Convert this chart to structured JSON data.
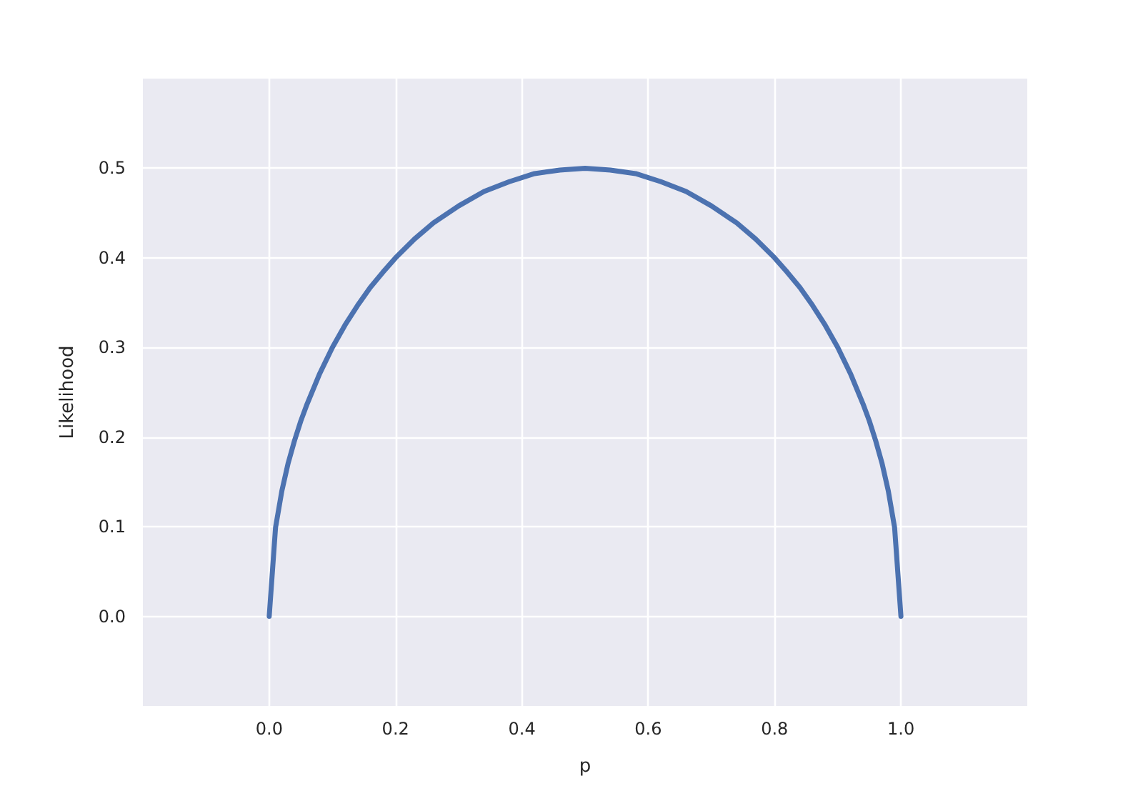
{
  "chart_data": {
    "type": "line",
    "xlabel": "p",
    "ylabel": "Likelihood",
    "x": [
      0,
      0.01,
      0.02,
      0.03,
      0.04,
      0.05,
      0.06,
      0.08,
      0.1,
      0.12,
      0.14,
      0.16,
      0.18,
      0.2,
      0.23,
      0.26,
      0.3,
      0.34,
      0.38,
      0.42,
      0.46,
      0.5,
      0.54,
      0.58,
      0.62,
      0.66,
      0.7,
      0.74,
      0.77,
      0.8,
      0.82,
      0.84,
      0.86,
      0.88,
      0.9,
      0.92,
      0.94,
      0.95,
      0.96,
      0.97,
      0.98,
      0.99,
      1
    ],
    "values": [
      0,
      0.099,
      0.14,
      0.171,
      0.196,
      0.218,
      0.237,
      0.271,
      0.3,
      0.325,
      0.347,
      0.367,
      0.384,
      0.4,
      0.421,
      0.439,
      0.458,
      0.474,
      0.485,
      0.494,
      0.498,
      0.5,
      0.498,
      0.494,
      0.485,
      0.474,
      0.458,
      0.439,
      0.421,
      0.4,
      0.384,
      0.367,
      0.347,
      0.325,
      0.3,
      0.271,
      0.237,
      0.218,
      0.196,
      0.171,
      0.14,
      0.099,
      0
    ],
    "color": "#4c72b0",
    "marker": "none",
    "grid": true,
    "xlim": [
      -0.2,
      1.2
    ],
    "ylim": [
      -0.1,
      0.6
    ],
    "xticks": [
      {
        "value": 0,
        "label": "0.0"
      },
      0.2,
      0.4,
      0.6,
      0.8,
      {
        "value": 1,
        "label": "1.0"
      }
    ],
    "yticks": [
      {
        "value": 0,
        "label": "0.0"
      },
      0.1,
      0.2,
      0.3,
      0.4,
      0.5
    ]
  }
}
